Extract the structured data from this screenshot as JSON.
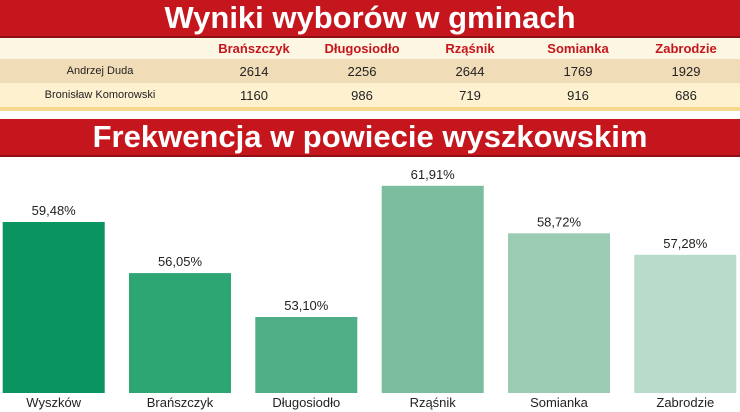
{
  "table": {
    "title": "Wyniki wyborów w gminach",
    "columns": [
      "Brańszczyk",
      "Długosiodło",
      "Rząśnik",
      "Somianka",
      "Zabrodzie"
    ],
    "rows": [
      {
        "candidate": "Andrzej Duda",
        "values": [
          "2614",
          "2256",
          "2644",
          "1769",
          "1929"
        ]
      },
      {
        "candidate": "Bronisław Komorowski",
        "values": [
          "1160",
          "986",
          "719",
          "916",
          "686"
        ]
      }
    ]
  },
  "chart_data": {
    "type": "bar",
    "title": "Frekwencja w powiecie wyszkowskim",
    "categories": [
      "Wyszków",
      "Brańszczyk",
      "Długosiodło",
      "Rząśnik",
      "Somianka",
      "Zabrodzie"
    ],
    "values": [
      59.48,
      56.05,
      53.1,
      61.91,
      58.72,
      57.28
    ],
    "value_labels": [
      "59,48%",
      "56,05%",
      "53,10%",
      "61,91%",
      "58,72%",
      "57,28%"
    ],
    "bar_colors": [
      "#0a9460",
      "#2ea674",
      "#4fae85",
      "#7bbd9e",
      "#9ccbb3",
      "#b8dcc9"
    ],
    "ylim": [
      48,
      62.5
    ],
    "grid": false,
    "xlabel": "",
    "ylabel": ""
  },
  "colors": {
    "banner": "#c4161c",
    "header_text": "#c4161c"
  }
}
